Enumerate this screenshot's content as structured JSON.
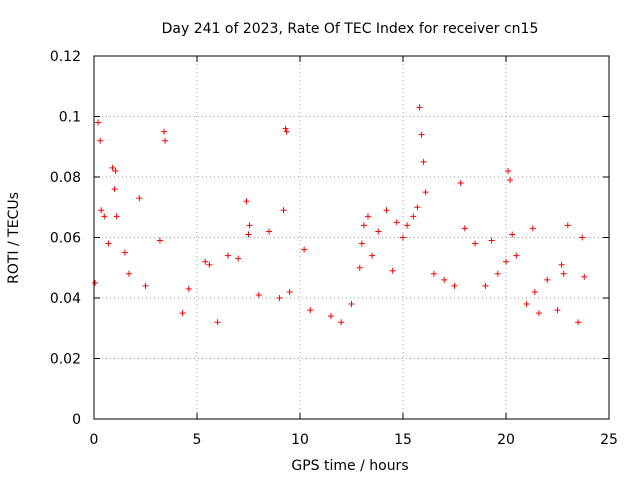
{
  "chart_data": {
    "type": "scatter",
    "title": "Day 241 of 2023, Rate Of TEC Index for receiver cn15",
    "xlabel": "GPS time / hours",
    "ylabel": "ROTI / TECUs",
    "xlim": [
      0,
      25
    ],
    "ylim": [
      0,
      0.12
    ],
    "xticks": [
      0,
      5,
      10,
      15,
      20,
      25
    ],
    "yticks": [
      0,
      0.02,
      0.04,
      0.06,
      0.08,
      0.1,
      0.12
    ],
    "xtick_labels": [
      "0",
      "5",
      "10",
      "15",
      "20",
      "25"
    ],
    "ytick_labels": [
      "0",
      "0.02",
      "0.04",
      "0.06",
      "0.08",
      "0.1",
      "0.12"
    ],
    "grid": true,
    "marker": "+",
    "color": "#ff0000",
    "series": [
      {
        "name": "ROTI",
        "x": [
          0.05,
          0.2,
          0.3,
          0.35,
          0.5,
          0.7,
          0.9,
          1.0,
          1.05,
          1.1,
          1.5,
          1.7,
          2.2,
          2.5,
          3.2,
          3.4,
          3.45,
          4.3,
          4.6,
          5.4,
          5.6,
          6.0,
          6.5,
          7.0,
          7.4,
          7.5,
          7.55,
          8.0,
          8.5,
          9.0,
          9.2,
          9.3,
          9.35,
          9.5,
          10.2,
          10.5,
          11.5,
          12.0,
          12.5,
          12.9,
          13.0,
          13.1,
          13.3,
          13.5,
          13.8,
          14.2,
          14.5,
          14.7,
          15.0,
          15.2,
          15.5,
          15.7,
          15.8,
          15.9,
          16.0,
          16.1,
          16.5,
          17.0,
          17.5,
          17.8,
          18.0,
          18.5,
          19.0,
          19.3,
          19.6,
          20.0,
          20.1,
          20.2,
          20.3,
          20.5,
          21.0,
          21.3,
          21.4,
          21.6,
          22.0,
          22.5,
          22.7,
          22.8,
          23.0,
          23.5,
          23.7,
          23.8
        ],
        "y": [
          0.045,
          0.098,
          0.092,
          0.069,
          0.067,
          0.058,
          0.083,
          0.076,
          0.082,
          0.067,
          0.055,
          0.048,
          0.073,
          0.044,
          0.059,
          0.095,
          0.092,
          0.035,
          0.043,
          0.052,
          0.051,
          0.032,
          0.054,
          0.053,
          0.072,
          0.061,
          0.064,
          0.041,
          0.062,
          0.04,
          0.069,
          0.096,
          0.095,
          0.042,
          0.056,
          0.036,
          0.034,
          0.032,
          0.038,
          0.05,
          0.058,
          0.064,
          0.067,
          0.054,
          0.062,
          0.069,
          0.049,
          0.065,
          0.06,
          0.064,
          0.067,
          0.07,
          0.103,
          0.094,
          0.085,
          0.075,
          0.048,
          0.046,
          0.044,
          0.078,
          0.063,
          0.058,
          0.044,
          0.059,
          0.048,
          0.052,
          0.082,
          0.079,
          0.061,
          0.054,
          0.038,
          0.063,
          0.042,
          0.035,
          0.046,
          0.036,
          0.051,
          0.048,
          0.064,
          0.032,
          0.06,
          0.047
        ]
      }
    ]
  }
}
